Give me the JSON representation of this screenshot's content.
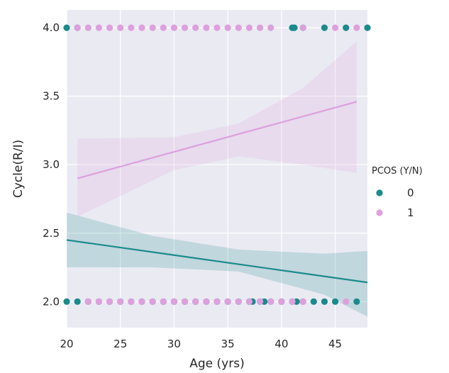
{
  "chart_data": {
    "type": "scatter",
    "xlabel": "Age (yrs)",
    "ylabel": "Cycle(R/I)",
    "xlim": [
      20,
      48
    ],
    "ylim": [
      1.81,
      4.13
    ],
    "xticks": [
      "20",
      "25",
      "30",
      "35",
      "40",
      "45"
    ],
    "yticks": [
      "2.0",
      "2.5",
      "3.0",
      "3.5",
      "4.0"
    ],
    "grid": true,
    "legend": {
      "title": "PCOS (Y/N)",
      "placement": "center-right"
    },
    "series": [
      {
        "name": "0",
        "color": "#1a8a8a",
        "points": [
          [
            20,
            4
          ],
          [
            21,
            4
          ],
          [
            41,
            4
          ],
          [
            41.2,
            4
          ],
          [
            42,
            4
          ],
          [
            44,
            4
          ],
          [
            46,
            4
          ],
          [
            48,
            4
          ],
          [
            20,
            2
          ],
          [
            21,
            2
          ],
          [
            22,
            2
          ],
          [
            23,
            2
          ],
          [
            24,
            2
          ],
          [
            25,
            2
          ],
          [
            26,
            2
          ],
          [
            27,
            2
          ],
          [
            28,
            2
          ],
          [
            29,
            2
          ],
          [
            30,
            2
          ],
          [
            31,
            2
          ],
          [
            32,
            2
          ],
          [
            33,
            2
          ],
          [
            34,
            2
          ],
          [
            35,
            2
          ],
          [
            36,
            2
          ],
          [
            37,
            2
          ],
          [
            37.3,
            2
          ],
          [
            38,
            2
          ],
          [
            38.4,
            2
          ],
          [
            39,
            2
          ],
          [
            40,
            2
          ],
          [
            41,
            2
          ],
          [
            41.4,
            2
          ],
          [
            42,
            2
          ],
          [
            43,
            2
          ],
          [
            44,
            2
          ],
          [
            45,
            2
          ],
          [
            47,
            2
          ]
        ],
        "regression": {
          "x": [
            20,
            48
          ],
          "y": [
            2.45,
            2.14
          ]
        },
        "ci": {
          "x": [
            20,
            28,
            36,
            44,
            48
          ],
          "lower": [
            2.25,
            2.25,
            2.22,
            2.05,
            1.89
          ],
          "upper": [
            2.65,
            2.48,
            2.38,
            2.35,
            2.37
          ]
        }
      },
      {
        "name": "1",
        "color": "#dda0dd",
        "points": [
          [
            21,
            4
          ],
          [
            22,
            4
          ],
          [
            23,
            4
          ],
          [
            24,
            4
          ],
          [
            25,
            4
          ],
          [
            26,
            4
          ],
          [
            27,
            4
          ],
          [
            28,
            4
          ],
          [
            29,
            4
          ],
          [
            30,
            4
          ],
          [
            31,
            4
          ],
          [
            32,
            4
          ],
          [
            33,
            4
          ],
          [
            34,
            4
          ],
          [
            35,
            4
          ],
          [
            36,
            4
          ],
          [
            37,
            4
          ],
          [
            38,
            4
          ],
          [
            39,
            4
          ],
          [
            42,
            4
          ],
          [
            45,
            4
          ],
          [
            47,
            4
          ],
          [
            22,
            2
          ],
          [
            23,
            2
          ],
          [
            24,
            2
          ],
          [
            25,
            2
          ],
          [
            26,
            2
          ],
          [
            27,
            2
          ],
          [
            28,
            2
          ],
          [
            29,
            2
          ],
          [
            30,
            2
          ],
          [
            31,
            2
          ],
          [
            32,
            2
          ],
          [
            33,
            2
          ],
          [
            34,
            2
          ],
          [
            35,
            2
          ],
          [
            36,
            2
          ],
          [
            37,
            2
          ],
          [
            38,
            2
          ],
          [
            39,
            2
          ],
          [
            40,
            2
          ],
          [
            41,
            2
          ],
          [
            42,
            2
          ],
          [
            46,
            2
          ]
        ],
        "regression": {
          "x": [
            21,
            47
          ],
          "y": [
            2.9,
            3.46
          ]
        },
        "ci": {
          "x": [
            21,
            30,
            36,
            42,
            47
          ],
          "lower": [
            2.62,
            2.96,
            3.06,
            3.0,
            2.94
          ],
          "upper": [
            3.19,
            3.2,
            3.3,
            3.56,
            3.9
          ]
        }
      }
    ]
  }
}
